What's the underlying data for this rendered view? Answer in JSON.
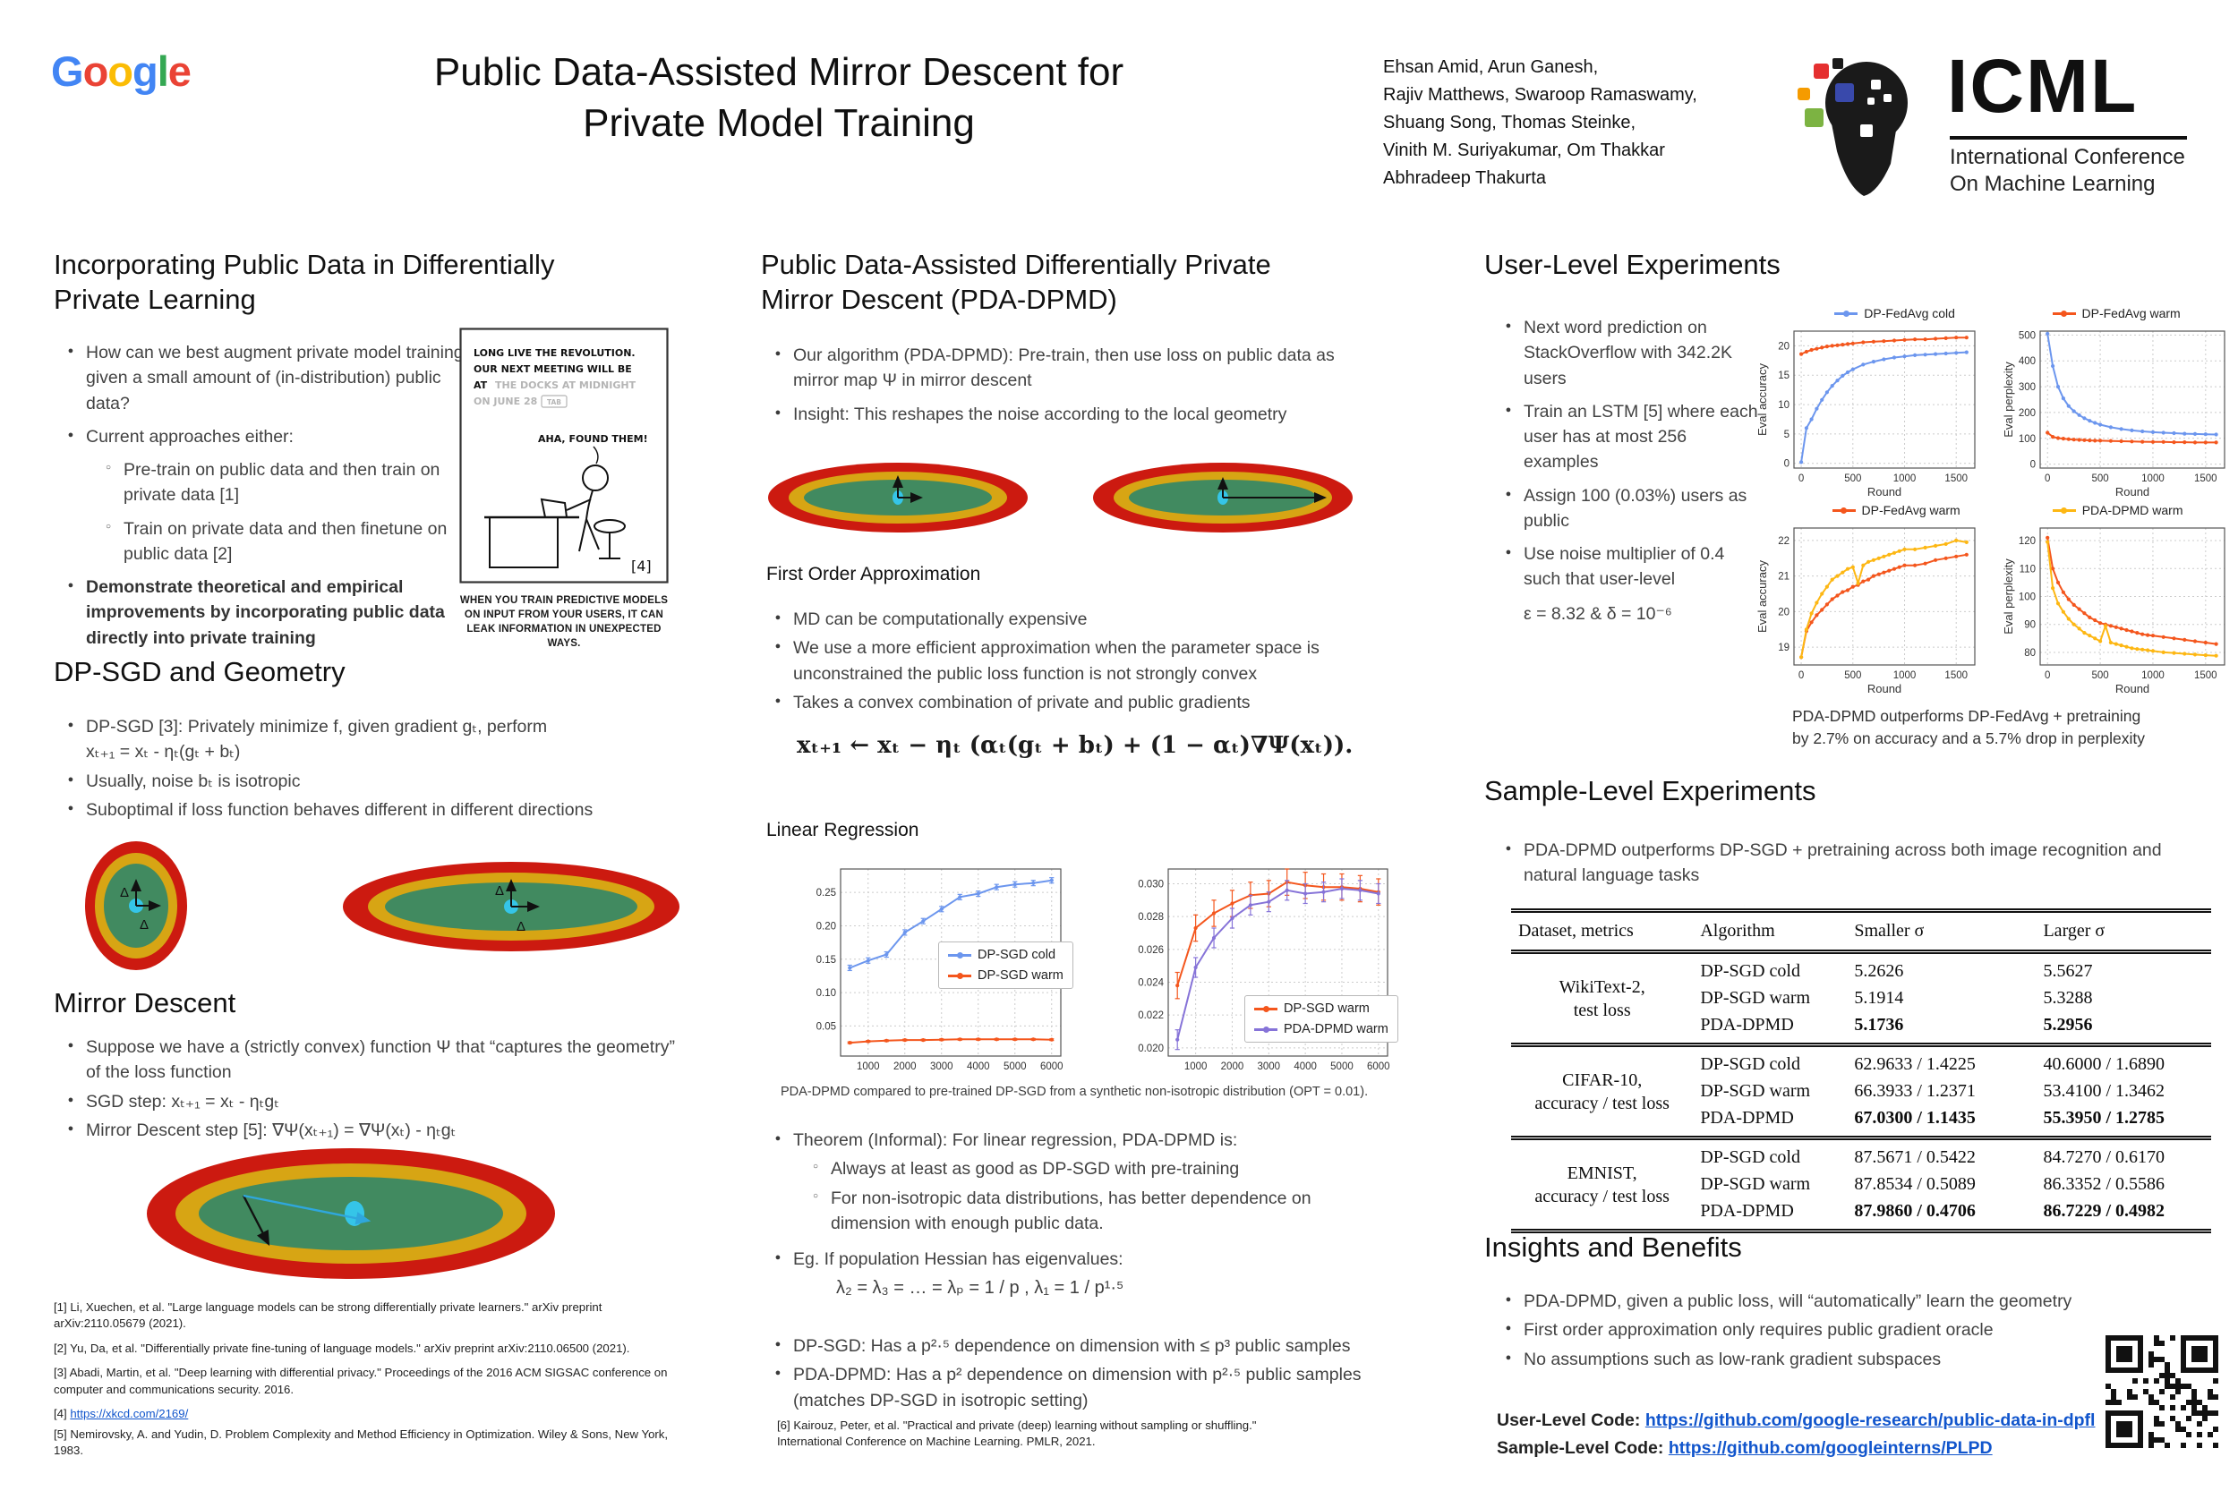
{
  "colors": {
    "blue_series": "#6c96ee",
    "orange_series": "#f4561d",
    "gold_series": "#fdb713",
    "purple_series": "#8673d8",
    "link": "#1155cc",
    "ellipse_red": "#cc1a10",
    "ellipse_gold": "#d7a514",
    "ellipse_green": "#418a60",
    "ellipse_dot": "#35c5e8",
    "google": [
      "#4285F4",
      "#EA4335",
      "#FBBC05",
      "#4285F4",
      "#34A853",
      "#EA4335"
    ]
  },
  "header": {
    "logo_letters": [
      "G",
      "o",
      "o",
      "g",
      "l",
      "e"
    ],
    "title1": "Public Data-Assisted Mirror Descent for",
    "title2": "Private Model Training",
    "authors": [
      "Ehsan Amid, Arun Ganesh,",
      "Rajiv Matthews, Swaroop Ramaswamy,",
      "Shuang Song, Thomas Steinke,",
      "Vinith M. Suriyakumar, Om Thakkar",
      "Abhradeep Thakurta"
    ],
    "icml": {
      "name": "ICML",
      "sub1": "International Conference",
      "sub2": "On Machine Learning"
    }
  },
  "left": {
    "sec1": {
      "t1": "Incorporating Public Data in Differentially",
      "t2": "Private Learning",
      "b1": "How can we best augment private model training given a small amount of (in-distribution) public data?",
      "b2": "Current approaches either:",
      "s1": "Pre-train on public data and then train on private data [1]",
      "s2": "Train on private data and then finetune on public data [2]",
      "b3": "Demonstrate theoretical and empirical improvements by incorporating public data directly into private training"
    },
    "comic": {
      "l1": "LONG LIVE THE REVOLUTION.",
      "l2": "OUR NEXT MEETING WILL BE",
      "l3a": "AT",
      "l3b": "THE DOCKS AT MIDNIGHT",
      "l4": "ON JUNE 28",
      "tab": "TAB",
      "aha": "AHA, FOUND THEM!",
      "ref": "[4]",
      "cap1": "WHEN YOU TRAIN PREDICTIVE MODELS",
      "cap2": "ON INPUT FROM YOUR USERS, IT CAN",
      "cap3": "LEAK INFORMATION IN UNEXPECTED WAYS."
    },
    "sec2": {
      "t": "DP-SGD and Geometry",
      "b1a": "DP-SGD [3]: Privately minimize f, given gradient gₜ, perform",
      "b1b": "xₜ₊₁ = xₜ - ηₜ(gₜ + bₜ)",
      "b2": "Usually, noise bₜ is isotropic",
      "b3": "Suboptimal if loss function behaves different in different directions",
      "delta": "Δ"
    },
    "sec3": {
      "t": "Mirror Descent",
      "b1": "Suppose we have a (strictly convex) function Ψ that “captures the geometry” of the loss function",
      "b2": "SGD step: xₜ₊₁ = xₜ - ηₜgₜ",
      "b3": "Mirror Descent step [5]: ∇Ψ(xₜ₊₁) = ∇Ψ(xₜ) - ηₜgₜ"
    },
    "refs": {
      "r1": "[1] Li, Xuechen, et al. \"Large language models can be strong differentially private learners.\" arXiv preprint arXiv:2110.05679 (2021).",
      "r2": "[2] Yu, Da, et al. \"Differentially private fine-tuning of language models.\" arXiv preprint arXiv:2110.06500 (2021).",
      "r3": "[3] Abadi, Martin, et al. \"Deep learning with differential privacy.\" Proceedings of the 2016 ACM SIGSAC conference on computer and communications security. 2016.",
      "r4_label": "[4] ",
      "r4_link": "https://xkcd.com/2169/",
      "r5": "[5] Nemirovsky, A. and Yudin, D. Problem Complexity and Method Efficiency in Optimization. Wiley & Sons, New York, 1983."
    }
  },
  "mid": {
    "t1": "Public Data-Assisted Differentially Private",
    "t2": "Mirror Descent (PDA-DPMD)",
    "b1": "Our algorithm (PDA-DPMD): Pre-train, then use loss on public data as mirror map  Ψ in mirror descent",
    "b2": "Insight: This reshapes the noise according to the local geometry",
    "foa_title": "First Order Approximation",
    "foa_b1": "MD can be computationally expensive",
    "foa_b2": "We use a more efficient approximation when the parameter space is unconstrained the public loss function is not strongly convex",
    "foa_b3": "Takes a convex combination of private and public gradients",
    "equation": "xₜ₊₁ ← xₜ − ηₜ (αₜ(gₜ + bₜ) + (1 − αₜ)∇Ψ(xₜ)).",
    "lr_title": "Linear Regression",
    "lr_caption": "PDA-DPMD compared to pre-trained DP-SGD from a synthetic non-isotropic distribution (OPT = 0.01).",
    "thm": "Theorem (Informal): For linear regression, PDA-DPMD is:",
    "thm_s1": "Always at least as good as DP-SGD with pre-training",
    "thm_s2": "For non-isotropic data distributions, has better dependence on dimension with enough public data.",
    "eg": "Eg. If population Hessian has eigenvalues:",
    "eg_eq": "λ₂ = λ₃ = … = λₚ = 1 / p , λ₁ = 1 / p¹·⁵",
    "dep1": "DP-SGD: Has a p²·⁵ dependence on dimension with ≤ p³ public samples",
    "dep2": "PDA-DPMD: Has a p² dependence on dimension with p²·⁵ public samples (matches DP-SGD in isotropic setting)",
    "ref6": "[6] Kairouz, Peter, et al. \"Practical and private (deep) learning without sampling or shuffling.\" International Conference on Machine Learning. PMLR, 2021."
  },
  "right": {
    "ul_title": "User-Level Experiments",
    "ul_b1": "Next word prediction on StackOverflow with 342.2K users",
    "ul_b2": "Train an LSTM [5] where each user has at most 256 examples",
    "ul_b3": "Assign 100 (0.03%) users as public",
    "ul_b4": "Use noise multiplier of 0.4 such that user-level",
    "ul_b4_eq": "ε = 8.32 & δ = 10⁻⁶",
    "ul_caption1": "PDA-DPMD outperforms DP-FedAvg + pretraining",
    "ul_caption2": "by 2.7% on accuracy and a 5.7% drop in perplexity",
    "sl_title": "Sample-Level Experiments",
    "sl_b1": "PDA-DPMD outperforms DP-SGD + pretraining across both image recognition and natural language tasks",
    "table": {
      "h0": "Dataset, metrics",
      "h1": "Algorithm",
      "h2": "Smaller σ",
      "h3": "Larger σ",
      "groups": [
        {
          "d1": "WikiText-2,",
          "d2": "test loss",
          "rows": [
            [
              "DP-SGD cold",
              "5.2626",
              "5.5627"
            ],
            [
              "DP-SGD warm",
              "5.1914",
              "5.3288"
            ],
            [
              "PDA-DPMD",
              "5.1736",
              "5.2956"
            ]
          ]
        },
        {
          "d1": "CIFAR-10,",
          "d2": "accuracy / test loss",
          "rows": [
            [
              "DP-SGD cold",
              "62.9633 / 1.4225",
              "40.6000 / 1.6890"
            ],
            [
              "DP-SGD warm",
              "66.3933 / 1.2371",
              "53.4100 / 1.3462"
            ],
            [
              "PDA-DPMD",
              "67.0300 / 1.1435",
              "55.3950 / 1.2785"
            ]
          ]
        },
        {
          "d1": "EMNIST,",
          "d2": "accuracy / test loss",
          "rows": [
            [
              "DP-SGD cold",
              "87.5671 / 0.5422",
              "84.7270 / 0.6170"
            ],
            [
              "DP-SGD warm",
              "87.8534 / 0.5089",
              "86.3352 / 0.5586"
            ],
            [
              "PDA-DPMD",
              "87.9860 / 0.4706",
              "86.7229 / 0.4982"
            ]
          ]
        }
      ]
    },
    "ins_title": "Insights and Benefits",
    "ins_b1": "PDA-DPMD, given a public loss, will “automatically” learn the geometry",
    "ins_b2": "First order approximation only requires public gradient oracle",
    "ins_b3": "No assumptions such as low-rank gradient subspaces",
    "code1_label": "User-Level Code: ",
    "code1_link": "https://github.com/google-research/public-data-in-dpfl",
    "code2_label": "Sample-Level Code: ",
    "code2_link": "https://github.com/googleinterns/PLPD"
  },
  "chart_data": [
    {
      "id": "lr-dpsgd-cold-vs-warm",
      "type": "line",
      "x": [
        500,
        1000,
        1500,
        2000,
        2500,
        3000,
        3500,
        4000,
        4500,
        5000,
        5500,
        6000
      ],
      "xlim": [
        250,
        6250
      ],
      "ylim": [
        0.005,
        0.285
      ],
      "xticks": [
        1000,
        2000,
        3000,
        4000,
        5000,
        6000
      ],
      "yticks": [
        0.05,
        0.1,
        0.15,
        0.2,
        0.25
      ],
      "ydecimals": 2,
      "xlabel": "",
      "ylabel": "",
      "margin_left": 46,
      "series": [
        {
          "name": "DP-SGD cold",
          "color": "#6c96ee",
          "err": 0.004,
          "values": [
            0.137,
            0.148,
            0.157,
            0.19,
            0.207,
            0.225,
            0.243,
            0.248,
            0.258,
            0.262,
            0.264,
            0.268
          ]
        },
        {
          "name": "DP-SGD warm",
          "color": "#f4561d",
          "err": 0.0012,
          "values": [
            0.025,
            0.027,
            0.028,
            0.029,
            0.029,
            0.0295,
            0.03,
            0.03,
            0.03,
            0.03,
            0.03,
            0.0295
          ]
        }
      ]
    },
    {
      "id": "lr-dpsgd-warm-vs-pdadpmd",
      "type": "line",
      "x": [
        500,
        1000,
        1500,
        2000,
        2500,
        3000,
        3500,
        4000,
        4500,
        5000,
        5500,
        6000
      ],
      "xlim": [
        250,
        6250
      ],
      "ylim": [
        0.0195,
        0.0309
      ],
      "xticks": [
        1000,
        2000,
        3000,
        4000,
        5000,
        6000
      ],
      "yticks": [
        0.02,
        0.022,
        0.024,
        0.026,
        0.028,
        0.03
      ],
      "ydecimals": 3,
      "xlabel": "",
      "ylabel": "",
      "margin_left": 52,
      "series": [
        {
          "name": "DP-SGD warm",
          "color": "#f4561d",
          "err": 0.0008,
          "values": [
            0.0238,
            0.0273,
            0.0282,
            0.0288,
            0.0293,
            0.0294,
            0.0301,
            0.0299,
            0.0298,
            0.0298,
            0.0297,
            0.0295
          ]
        },
        {
          "name": "PDA-DPMD warm",
          "color": "#8673d8",
          "err": 0.0006,
          "values": [
            0.0205,
            0.0249,
            0.0267,
            0.0279,
            0.0287,
            0.0289,
            0.0296,
            0.0294,
            0.0295,
            0.0297,
            0.0296,
            0.0294
          ]
        }
      ]
    },
    {
      "id": "ul-accuracy-cold",
      "type": "line",
      "x": [
        0,
        50,
        100,
        150,
        200,
        250,
        300,
        350,
        400,
        450,
        500,
        600,
        700,
        800,
        900,
        1000,
        1100,
        1200,
        1300,
        1400,
        1500,
        1600
      ],
      "xlim": [
        -70,
        1680
      ],
      "ylim": [
        -0.8,
        22.5
      ],
      "xticks": [
        0,
        500,
        1000,
        1500
      ],
      "yticks": [
        0,
        5,
        10,
        15,
        20
      ],
      "xlabel": "Round",
      "ylabel": "Eval accuracy",
      "margin_left": 42,
      "series": [
        {
          "name": "DP-FedAvg cold",
          "color": "#6c96ee",
          "values": [
            0.2,
            6.0,
            7.5,
            9.3,
            10.8,
            12.1,
            13.2,
            14.1,
            14.9,
            15.5,
            16.0,
            16.8,
            17.3,
            17.7,
            18.0,
            18.2,
            18.4,
            18.5,
            18.6,
            18.7,
            18.8,
            18.9
          ]
        },
        {
          "name": "DP-FedAvg warm",
          "color": "#f4561d",
          "values": [
            18.6,
            19.0,
            19.3,
            19.5,
            19.7,
            19.9,
            20.0,
            20.1,
            20.2,
            20.3,
            20.4,
            20.6,
            20.7,
            20.8,
            20.9,
            21.0,
            21.1,
            21.1,
            21.2,
            21.3,
            21.4,
            21.4
          ]
        }
      ]
    },
    {
      "id": "ul-perplexity-cold",
      "type": "line",
      "x": [
        0,
        50,
        100,
        150,
        200,
        250,
        300,
        350,
        400,
        450,
        500,
        600,
        700,
        800,
        900,
        1000,
        1100,
        1200,
        1300,
        1400,
        1500,
        1600
      ],
      "xlim": [
        -70,
        1680
      ],
      "ylim": [
        -15,
        515
      ],
      "xticks": [
        0,
        500,
        1000,
        1500
      ],
      "yticks": [
        0,
        100,
        200,
        300,
        400,
        500
      ],
      "xlabel": "Round",
      "ylabel": "Eval perplexity",
      "margin_left": 42,
      "series": [
        {
          "name": "DP-FedAvg cold",
          "color": "#6c96ee",
          "values": [
            505,
            380,
            300,
            255,
            225,
            205,
            190,
            178,
            168,
            160,
            153,
            143,
            136,
            131,
            127,
            124,
            122,
            120,
            118,
            117,
            116,
            115
          ]
        },
        {
          "name": "DP-FedAvg warm",
          "color": "#f4561d",
          "values": [
            122,
            106,
            101,
            99,
            97,
            95,
            94,
            93,
            92,
            91,
            91,
            90,
            89,
            88,
            87,
            86,
            86,
            85,
            85,
            84,
            84,
            84
          ]
        }
      ]
    },
    {
      "id": "ul-accuracy-warm",
      "type": "line",
      "x": [
        0,
        50,
        100,
        150,
        200,
        250,
        300,
        350,
        400,
        450,
        500,
        550,
        600,
        650,
        700,
        750,
        800,
        850,
        900,
        950,
        1000,
        1100,
        1200,
        1300,
        1400,
        1500,
        1600
      ],
      "xlim": [
        -70,
        1680
      ],
      "ylim": [
        18.5,
        22.35
      ],
      "xticks": [
        0,
        500,
        1000,
        1500
      ],
      "yticks": [
        19,
        20,
        21,
        22
      ],
      "xlabel": "Round",
      "ylabel": "Eval accuracy",
      "margin_left": 42,
      "series": [
        {
          "name": "DP-FedAvg warm",
          "color": "#f4561d",
          "values": [
            18.72,
            19.45,
            19.7,
            19.9,
            20.05,
            20.2,
            20.35,
            20.45,
            20.55,
            20.6,
            20.7,
            20.75,
            20.85,
            20.9,
            21.0,
            21.05,
            21.1,
            21.15,
            21.2,
            21.25,
            21.3,
            21.3,
            21.35,
            21.45,
            21.5,
            21.55,
            21.6
          ]
        },
        {
          "name": "PDA-DPMD warm",
          "color": "#fdb713",
          "values": [
            18.72,
            19.5,
            19.95,
            20.25,
            20.5,
            20.7,
            20.9,
            21.0,
            21.1,
            21.2,
            21.25,
            20.8,
            21.3,
            21.4,
            21.45,
            21.5,
            21.55,
            21.6,
            21.65,
            21.7,
            21.75,
            21.75,
            21.8,
            21.85,
            21.9,
            22.0,
            21.95
          ]
        }
      ]
    },
    {
      "id": "ul-perplexity-warm",
      "type": "line",
      "x": [
        0,
        50,
        100,
        150,
        200,
        250,
        300,
        350,
        400,
        450,
        500,
        550,
        600,
        650,
        700,
        750,
        800,
        850,
        900,
        950,
        1000,
        1100,
        1200,
        1300,
        1400,
        1500,
        1600
      ],
      "xlim": [
        -70,
        1680
      ],
      "ylim": [
        75.5,
        124.5
      ],
      "xticks": [
        0,
        500,
        1000,
        1500
      ],
      "yticks": [
        80,
        90,
        100,
        110,
        120
      ],
      "xlabel": "Round",
      "ylabel": "Eval perplexity",
      "margin_left": 42,
      "series": [
        {
          "name": "DP-FedAvg warm",
          "color": "#f4561d",
          "values": [
            121,
            110,
            105,
            101.5,
            99,
            97,
            95.5,
            94,
            92.5,
            91.5,
            90.5,
            90,
            89.5,
            89,
            88.5,
            88,
            87.5,
            87,
            86.5,
            86.2,
            86,
            85.5,
            85,
            84.5,
            84,
            83.5,
            83
          ]
        },
        {
          "name": "PDA-DPMD warm",
          "color": "#fdb713",
          "values": [
            119.5,
            103,
            97.5,
            94.5,
            92,
            90,
            88.5,
            87,
            86,
            85,
            84,
            89.5,
            83.5,
            83,
            82.5,
            82,
            81.5,
            81.2,
            81,
            80.8,
            80.5,
            80,
            79.8,
            79.5,
            79.2,
            79,
            78.8
          ]
        }
      ]
    }
  ]
}
